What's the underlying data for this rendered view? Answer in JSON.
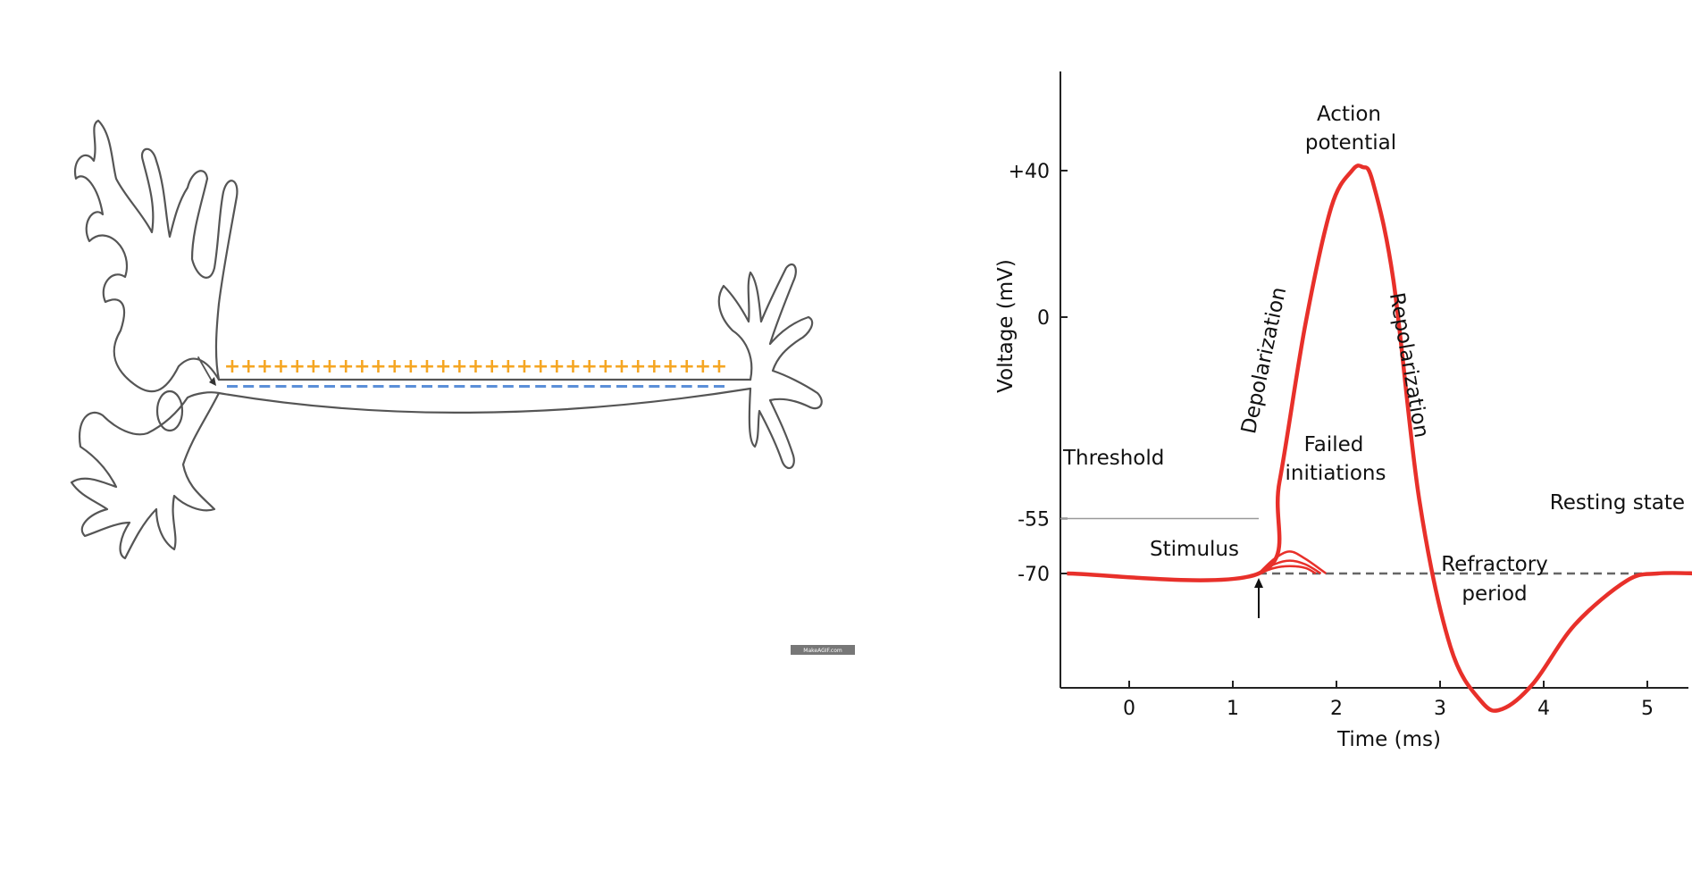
{
  "neuron_diagram": {
    "watermark_text": "MakeAGIF.com",
    "colors": {
      "outline": "#555555",
      "positive_charge": "#f5a623",
      "negative_charge": "#5b8fd9",
      "watermark_bg": "#777777"
    },
    "charge_symbols": {
      "positive": "+",
      "negative": "-"
    }
  },
  "chart_data": {
    "type": "line",
    "title": "",
    "xlabel": "Time (ms)",
    "ylabel": "Voltage (mV)",
    "xlim": [
      -0.6,
      5.5
    ],
    "x_ticks": [
      0,
      1,
      2,
      3,
      4,
      5
    ],
    "y_ticks": [
      {
        "value": 40,
        "label": "+40"
      },
      {
        "value": 0,
        "label": "0"
      },
      {
        "value": -55,
        "label": "-55"
      },
      {
        "value": -70,
        "label": "-70"
      }
    ],
    "ylim": [
      -115,
      65
    ],
    "grid": false,
    "colors": {
      "trace": "#e8302a",
      "threshold_line": "#999999",
      "resting_dashed": "#666666",
      "axis": "#222222"
    },
    "series": [
      {
        "x": [
          -0.6,
          1.25,
          1.45,
          1.7,
          1.95,
          2.15,
          2.25,
          2.35,
          2.55,
          2.8,
          3.1,
          3.4,
          3.6,
          3.9,
          4.3,
          4.8,
          5.1,
          5.5
        ],
        "values": [
          -70,
          -70,
          -45,
          -2,
          30,
          40,
          41,
          37,
          10,
          -50,
          -90,
          -105,
          -107,
          -100,
          -84,
          -72,
          -70,
          -70
        ]
      }
    ],
    "failed_initiations": [
      {
        "x": [
          1.25,
          1.4,
          1.55,
          1.7,
          1.9
        ],
        "values": [
          -70,
          -66,
          -64,
          -66,
          -70
        ]
      },
      {
        "x": [
          1.25,
          1.4,
          1.55,
          1.7,
          1.85
        ],
        "values": [
          -70,
          -67.5,
          -66.5,
          -67.5,
          -70
        ]
      },
      {
        "x": [
          1.25,
          1.4,
          1.55,
          1.7,
          1.8
        ],
        "values": [
          -70,
          -68.5,
          -68,
          -68.5,
          -70
        ]
      }
    ],
    "threshold": {
      "value": -55,
      "label": "Threshold"
    },
    "resting": {
      "value": -70,
      "label": "Resting state",
      "dashed_from_x": 1.25,
      "dashed_to_x": 5.1
    },
    "annotations": {
      "action_potential_line1": "Action",
      "action_potential_line2": "potential",
      "depolarization": "Depolarization",
      "repolarization": "Repolarization",
      "failed_line1": "Failed",
      "failed_line2": "initiations",
      "stimulus": "Stimulus",
      "refractory_line1": "Refractory",
      "refractory_line2": "period"
    },
    "stimulus_x": 1.25
  }
}
